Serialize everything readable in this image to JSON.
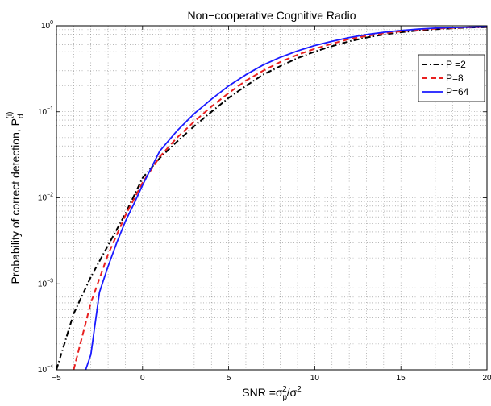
{
  "chart_data": {
    "type": "line",
    "title": "Non−cooperative Cognitive Radio",
    "xlabel": "SNR =σp²/σ²",
    "ylabel": "Probability of correct detection, Pd(i)",
    "x_scale": "linear",
    "y_scale": "log",
    "xlim": [
      -5,
      20
    ],
    "ylim": [
      0.0001,
      1
    ],
    "xticks": [
      -5,
      0,
      5,
      10,
      15,
      20
    ],
    "yticks": [
      {
        "value": 0.0001,
        "base": "10",
        "exp": "−4"
      },
      {
        "value": 0.001,
        "base": "10",
        "exp": "−3"
      },
      {
        "value": 0.01,
        "base": "10",
        "exp": "−2"
      },
      {
        "value": 0.1,
        "base": "10",
        "exp": "−1"
      },
      {
        "value": 1,
        "base": "10",
        "exp": "0"
      }
    ],
    "grid": true,
    "legend_position": "top-right",
    "series": [
      {
        "name": "P =2",
        "color": "#000000",
        "style": "dashdot",
        "x": [
          -5,
          -4,
          -3,
          -2,
          -1,
          0,
          1,
          2,
          3,
          4,
          5,
          6,
          7,
          8,
          9,
          10,
          11,
          12,
          13,
          14,
          15,
          16,
          17,
          18,
          19,
          20
        ],
        "y": [
          0.0001,
          0.00045,
          0.0012,
          0.0028,
          0.0065,
          0.017,
          0.029,
          0.045,
          0.068,
          0.1,
          0.145,
          0.2,
          0.27,
          0.34,
          0.42,
          0.5,
          0.58,
          0.66,
          0.73,
          0.79,
          0.84,
          0.88,
          0.91,
          0.935,
          0.955,
          0.965
        ]
      },
      {
        "name": "P=8",
        "color": "#e82020",
        "style": "dashed",
        "x": [
          -4,
          -3,
          -2,
          -1,
          0,
          1,
          2,
          3,
          4,
          5,
          6,
          7,
          8,
          9,
          10,
          11,
          12,
          13,
          14,
          15,
          16,
          17,
          18,
          19,
          20
        ],
        "y": [
          0.0001,
          0.0006,
          0.0022,
          0.0062,
          0.015,
          0.03,
          0.05,
          0.077,
          0.115,
          0.165,
          0.23,
          0.3,
          0.38,
          0.46,
          0.54,
          0.62,
          0.7,
          0.76,
          0.82,
          0.86,
          0.9,
          0.925,
          0.945,
          0.96,
          0.97
        ]
      },
      {
        "name": "P=64",
        "color": "#1a1aff",
        "style": "solid",
        "x": [
          -3.3,
          -3,
          -2.5,
          -2,
          -1.5,
          -1,
          -0.5,
          0,
          1,
          2,
          3,
          4,
          5,
          6,
          7,
          8,
          9,
          10,
          11,
          12,
          13,
          14,
          15,
          16,
          17,
          18,
          19,
          20
        ],
        "y": [
          0.0001,
          0.00015,
          0.0008,
          0.0016,
          0.003,
          0.0053,
          0.0085,
          0.014,
          0.035,
          0.06,
          0.095,
          0.14,
          0.2,
          0.27,
          0.35,
          0.43,
          0.51,
          0.59,
          0.66,
          0.73,
          0.79,
          0.84,
          0.88,
          0.915,
          0.94,
          0.955,
          0.965,
          0.975
        ]
      }
    ]
  }
}
